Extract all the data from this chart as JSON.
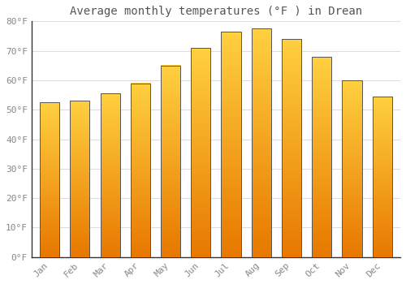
{
  "title": "Average monthly temperatures (°F ) in Drean",
  "months": [
    "Jan",
    "Feb",
    "Mar",
    "Apr",
    "May",
    "Jun",
    "Jul",
    "Aug",
    "Sep",
    "Oct",
    "Nov",
    "Dec"
  ],
  "values": [
    52.5,
    53,
    55.5,
    59,
    65,
    71,
    76.5,
    77.5,
    74,
    68,
    60,
    54.5
  ],
  "ylim": [
    0,
    80
  ],
  "yticks": [
    0,
    10,
    20,
    30,
    40,
    50,
    60,
    70,
    80
  ],
  "ytick_labels": [
    "0°F",
    "10°F",
    "20°F",
    "30°F",
    "40°F",
    "50°F",
    "60°F",
    "70°F",
    "80°F"
  ],
  "background_color": "#ffffff",
  "grid_color": "#dddddd",
  "title_fontsize": 10,
  "tick_fontsize": 8,
  "bar_color_bottom": "#E87800",
  "bar_color_top": "#FFD040",
  "bar_edge_color": "#555555",
  "bar_width": 0.65
}
